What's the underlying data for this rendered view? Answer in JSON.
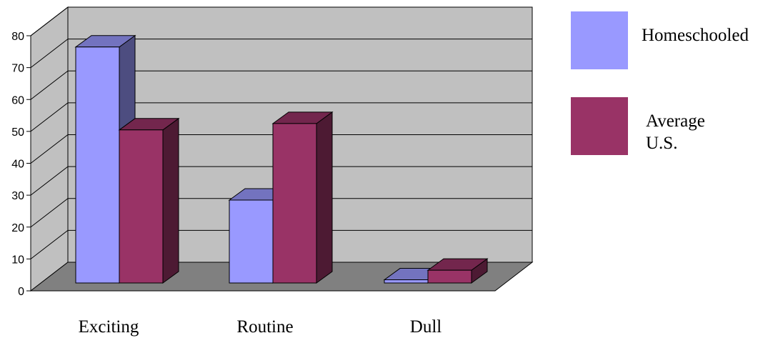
{
  "chart_data": {
    "type": "bar",
    "title": "",
    "xlabel": "",
    "ylabel": "",
    "categories": [
      "Exciting",
      "Routine",
      "Dull"
    ],
    "ylim": [
      0,
      80
    ],
    "yticks": [
      "0",
      "10",
      "20",
      "30",
      "40",
      "50",
      "60",
      "70",
      "80"
    ],
    "grid": true,
    "legend_position": "right",
    "series": [
      {
        "name": "Homeschooled",
        "values": [
          74,
          26,
          1
        ],
        "color": "#9999ff"
      },
      {
        "name": "Average U.S.",
        "values": [
          48,
          50,
          4
        ],
        "color": "#993366"
      }
    ]
  }
}
